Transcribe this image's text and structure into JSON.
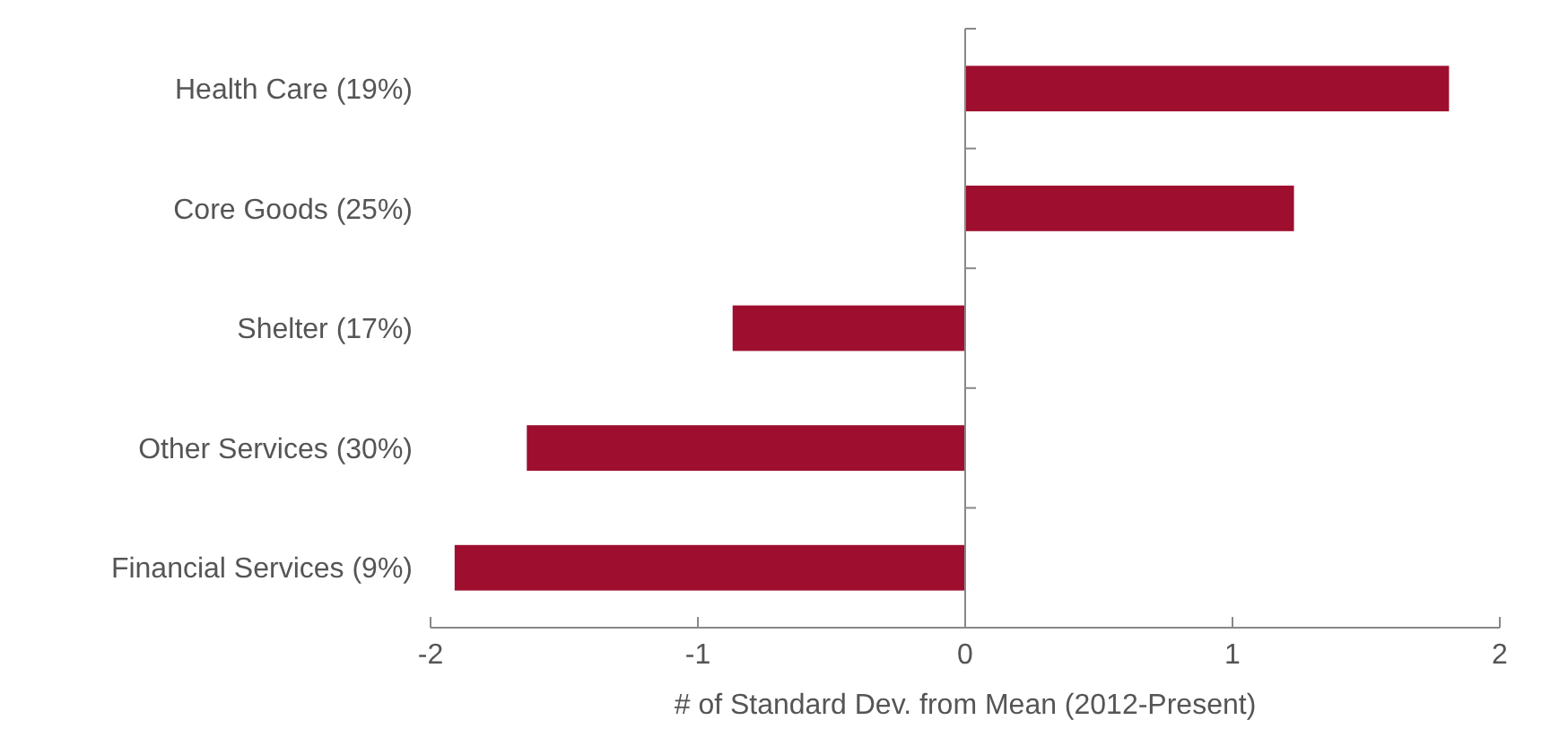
{
  "chart_data": {
    "type": "bar",
    "orientation": "horizontal",
    "xlabel": "# of Standard Dev. from Mean (2012-Present)",
    "categories": [
      "Health Care (19%)",
      "Core Goods (25%)",
      "Shelter (17%)",
      "Other Services (30%)",
      "Financial Services (9%)"
    ],
    "values": [
      1.81,
      1.23,
      -0.87,
      -1.64,
      -1.91
    ],
    "color": "#9e0e2e",
    "xlim": [
      -2,
      2
    ],
    "xticks": [
      -2,
      -1,
      0,
      1,
      2
    ]
  }
}
